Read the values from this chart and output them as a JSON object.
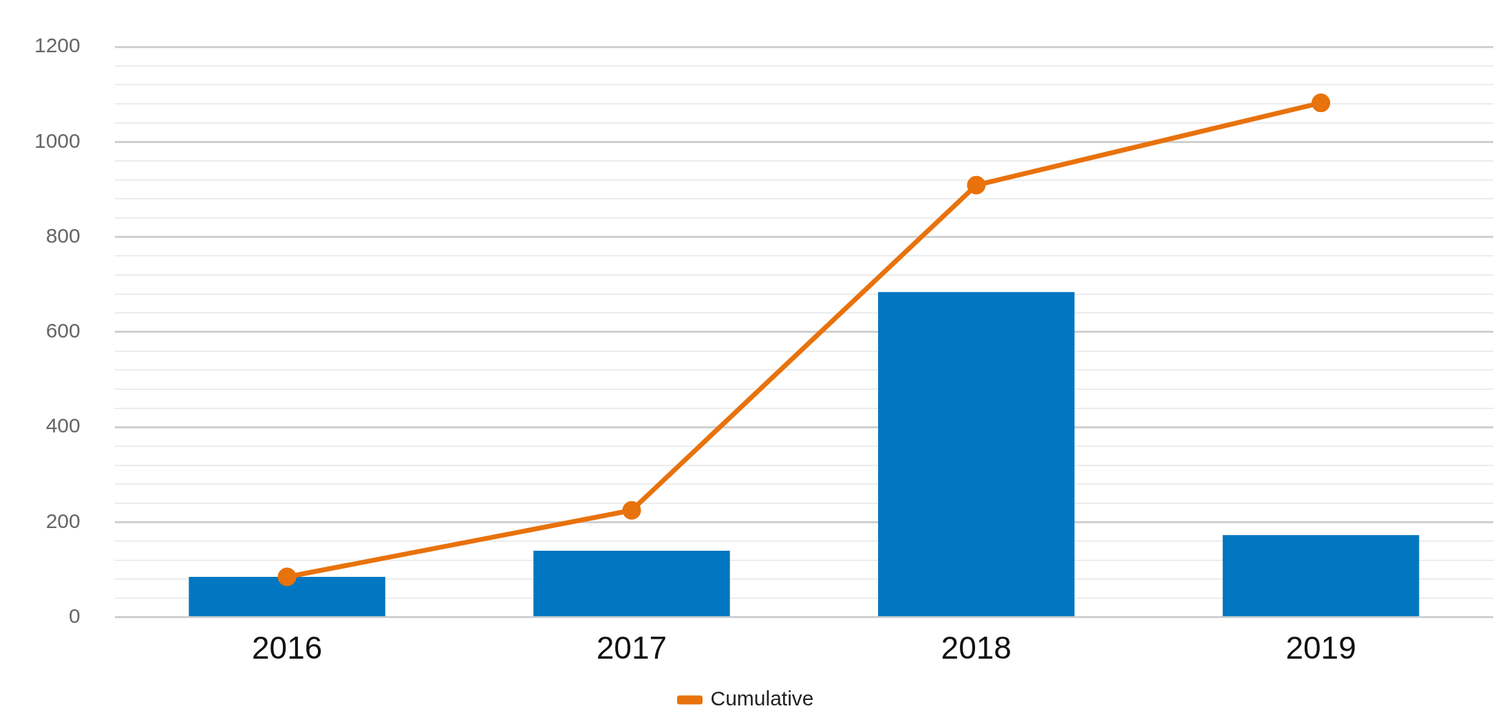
{
  "chart_data": {
    "type": "bar",
    "categories": [
      "2016",
      "2017",
      "2018",
      "2019"
    ],
    "series": [
      {
        "color": "#0077c0",
        "values": [
          85,
          140,
          684,
          173
        ]
      },
      {
        "type": "line",
        "name": "Cumulative",
        "color": "#e8720c",
        "values": [
          85,
          225,
          909,
          1082
        ]
      }
    ],
    "ylim": [
      0,
      1200
    ],
    "yticks": [
      0,
      {
        "value": 40,
        "label": null
      },
      {
        "value": 80,
        "label": null
      },
      {
        "value": 120,
        "label": null
      },
      {
        "value": 160,
        "label": null
      },
      200,
      {
        "value": 240,
        "label": null
      },
      {
        "value": 280,
        "label": null
      },
      {
        "value": 320,
        "label": null
      },
      {
        "value": 360,
        "label": null
      },
      400,
      {
        "value": 440,
        "label": null
      },
      {
        "value": 480,
        "label": null
      },
      {
        "value": 520,
        "label": null
      },
      {
        "value": 560,
        "label": null
      },
      600,
      {
        "value": 640,
        "label": null
      },
      {
        "value": 680,
        "label": null
      },
      {
        "value": 720,
        "label": null
      },
      {
        "value": 760,
        "label": null
      },
      800,
      {
        "value": 840,
        "label": null
      },
      {
        "value": 880,
        "label": null
      },
      {
        "value": 920,
        "label": null
      },
      {
        "value": 960,
        "label": null
      },
      1000,
      {
        "value": 1040,
        "label": null
      },
      {
        "value": 1080,
        "label": null
      },
      {
        "value": 1120,
        "label": null
      },
      {
        "value": 1160,
        "label": null
      },
      1200
    ],
    "grid": "y",
    "legend": "bottom",
    "marker": "circle"
  }
}
